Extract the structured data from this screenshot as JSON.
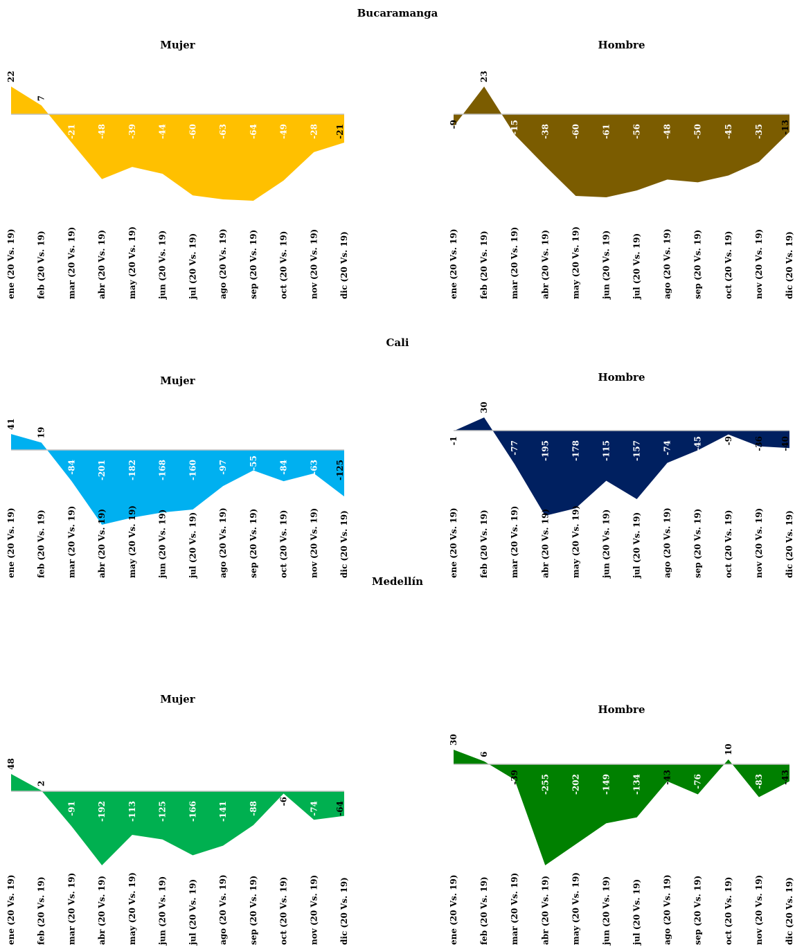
{
  "categories": [
    "ene (20 Vs. 19)",
    "feb (20 Vs. 19)",
    "mar (20 Vs. 19)",
    "abr (20 Vs. 19)",
    "may (20 Vs. 19)",
    "jun (20 Vs. 19)",
    "jul (20 Vs. 19)",
    "ago (20 Vs. 19)",
    "sep (20 Vs. 19)",
    "oct (20 Vs. 19)",
    "nov (20 Vs. 19)",
    "dic (20 Vs. 19)"
  ],
  "cities": [
    {
      "name": "Bucaramanga"
    },
    {
      "name": "Cali"
    },
    {
      "name": "Medellín"
    }
  ],
  "chart_data": [
    {
      "type": "area",
      "city": "Bucaramanga",
      "title": "Mujer",
      "color": "#FFC000",
      "categories": [
        "ene (20 Vs. 19)",
        "feb (20 Vs. 19)",
        "mar (20 Vs. 19)",
        "abr (20 Vs. 19)",
        "may (20 Vs. 19)",
        "jun (20 Vs. 19)",
        "jul (20 Vs. 19)",
        "ago (20 Vs. 19)",
        "sep (20 Vs. 19)",
        "oct (20 Vs. 19)",
        "nov (20 Vs. 19)",
        "dic (20 Vs. 19)"
      ],
      "values": [
        22,
        7,
        -21,
        -48,
        -39,
        -44,
        -60,
        -63,
        -64,
        -49,
        -28,
        -21
      ],
      "ylim": [
        -70,
        25
      ]
    },
    {
      "type": "area",
      "city": "Bucaramanga",
      "title": "Hombre",
      "color": "#7B5C00",
      "categories": [
        "ene (20 Vs. 19)",
        "feb (20 Vs. 19)",
        "mar (20 Vs. 19)",
        "abr (20 Vs. 19)",
        "may (20 Vs. 19)",
        "jun (20 Vs. 19)",
        "jul (20 Vs. 19)",
        "ago (20 Vs. 19)",
        "sep (20 Vs. 19)",
        "oct (20 Vs. 19)",
        "nov (20 Vs. 19)",
        "dic (20 Vs. 19)"
      ],
      "values": [
        -9,
        23,
        -15,
        -38,
        -60,
        -61,
        -56,
        -48,
        -50,
        -45,
        -35,
        -13
      ],
      "ylim": [
        -65,
        25
      ]
    },
    {
      "type": "area",
      "city": "Cali",
      "title": "Mujer",
      "color": "#00B0F0",
      "categories": [
        "ene (20 Vs. 19)",
        "feb (20 Vs. 19)",
        "mar (20 Vs. 19)",
        "abr (20 Vs. 19)",
        "may (20 Vs. 19)",
        "jun (20 Vs. 19)",
        "jul (20 Vs. 19)",
        "ago (20 Vs. 19)",
        "sep (20 Vs. 19)",
        "oct (20 Vs. 19)",
        "nov (20 Vs. 19)",
        "dic (20 Vs. 19)"
      ],
      "values": [
        41,
        19,
        -84,
        -201,
        -182,
        -168,
        -160,
        -97,
        -55,
        -84,
        -63,
        -125
      ],
      "ylim": [
        -210,
        45
      ]
    },
    {
      "type": "area",
      "city": "Cali",
      "title": "Hombre",
      "color": "#002060",
      "categories": [
        "ene (20 Vs. 19)",
        "feb (20 Vs. 19)",
        "mar (20 Vs. 19)",
        "abr (20 Vs. 19)",
        "may (20 Vs. 19)",
        "jun (20 Vs. 19)",
        "jul (20 Vs. 19)",
        "ago (20 Vs. 19)",
        "sep (20 Vs. 19)",
        "oct (20 Vs. 19)",
        "nov (20 Vs. 19)",
        "dic (20 Vs. 19)"
      ],
      "values": [
        -1,
        30,
        -77,
        -195,
        -178,
        -115,
        -157,
        -74,
        -45,
        -9,
        -36,
        -40
      ],
      "ylim": [
        -205,
        35
      ]
    },
    {
      "type": "area",
      "city": "Medellín",
      "title": "Mujer",
      "color": "#00B050",
      "categories": [
        "ene (20 Vs. 19)",
        "feb (20 Vs. 19)",
        "mar (20 Vs. 19)",
        "abr (20 Vs. 19)",
        "may (20 Vs. 19)",
        "jun (20 Vs. 19)",
        "jul (20 Vs. 19)",
        "ago (20 Vs. 19)",
        "sep (20 Vs. 19)",
        "oct (20 Vs. 19)",
        "nov (20 Vs. 19)",
        "dic (20 Vs. 19)"
      ],
      "values": [
        48,
        2,
        -91,
        -192,
        -113,
        -125,
        -166,
        -141,
        -88,
        -6,
        -74,
        -64
      ],
      "ylim": [
        -200,
        50
      ]
    },
    {
      "type": "area",
      "city": "Medellín",
      "title": "Hombre",
      "color": "#008000",
      "categories": [
        "ene (20 Vs. 19)",
        "feb (20 Vs. 19)",
        "mar (20 Vs. 19)",
        "abr (20 Vs. 19)",
        "may (20 Vs. 19)",
        "jun (20 Vs. 19)",
        "jul (20 Vs. 19)",
        "ago (20 Vs. 19)",
        "sep (20 Vs. 19)",
        "oct (20 Vs. 19)",
        "nov (20 Vs. 19)",
        "dic (20 Vs. 19)"
      ],
      "values": [
        30,
        6,
        -39,
        -255,
        -202,
        -149,
        -134,
        -43,
        -76,
        10,
        -83,
        -43
      ],
      "ylim": [
        -265,
        35
      ]
    }
  ]
}
